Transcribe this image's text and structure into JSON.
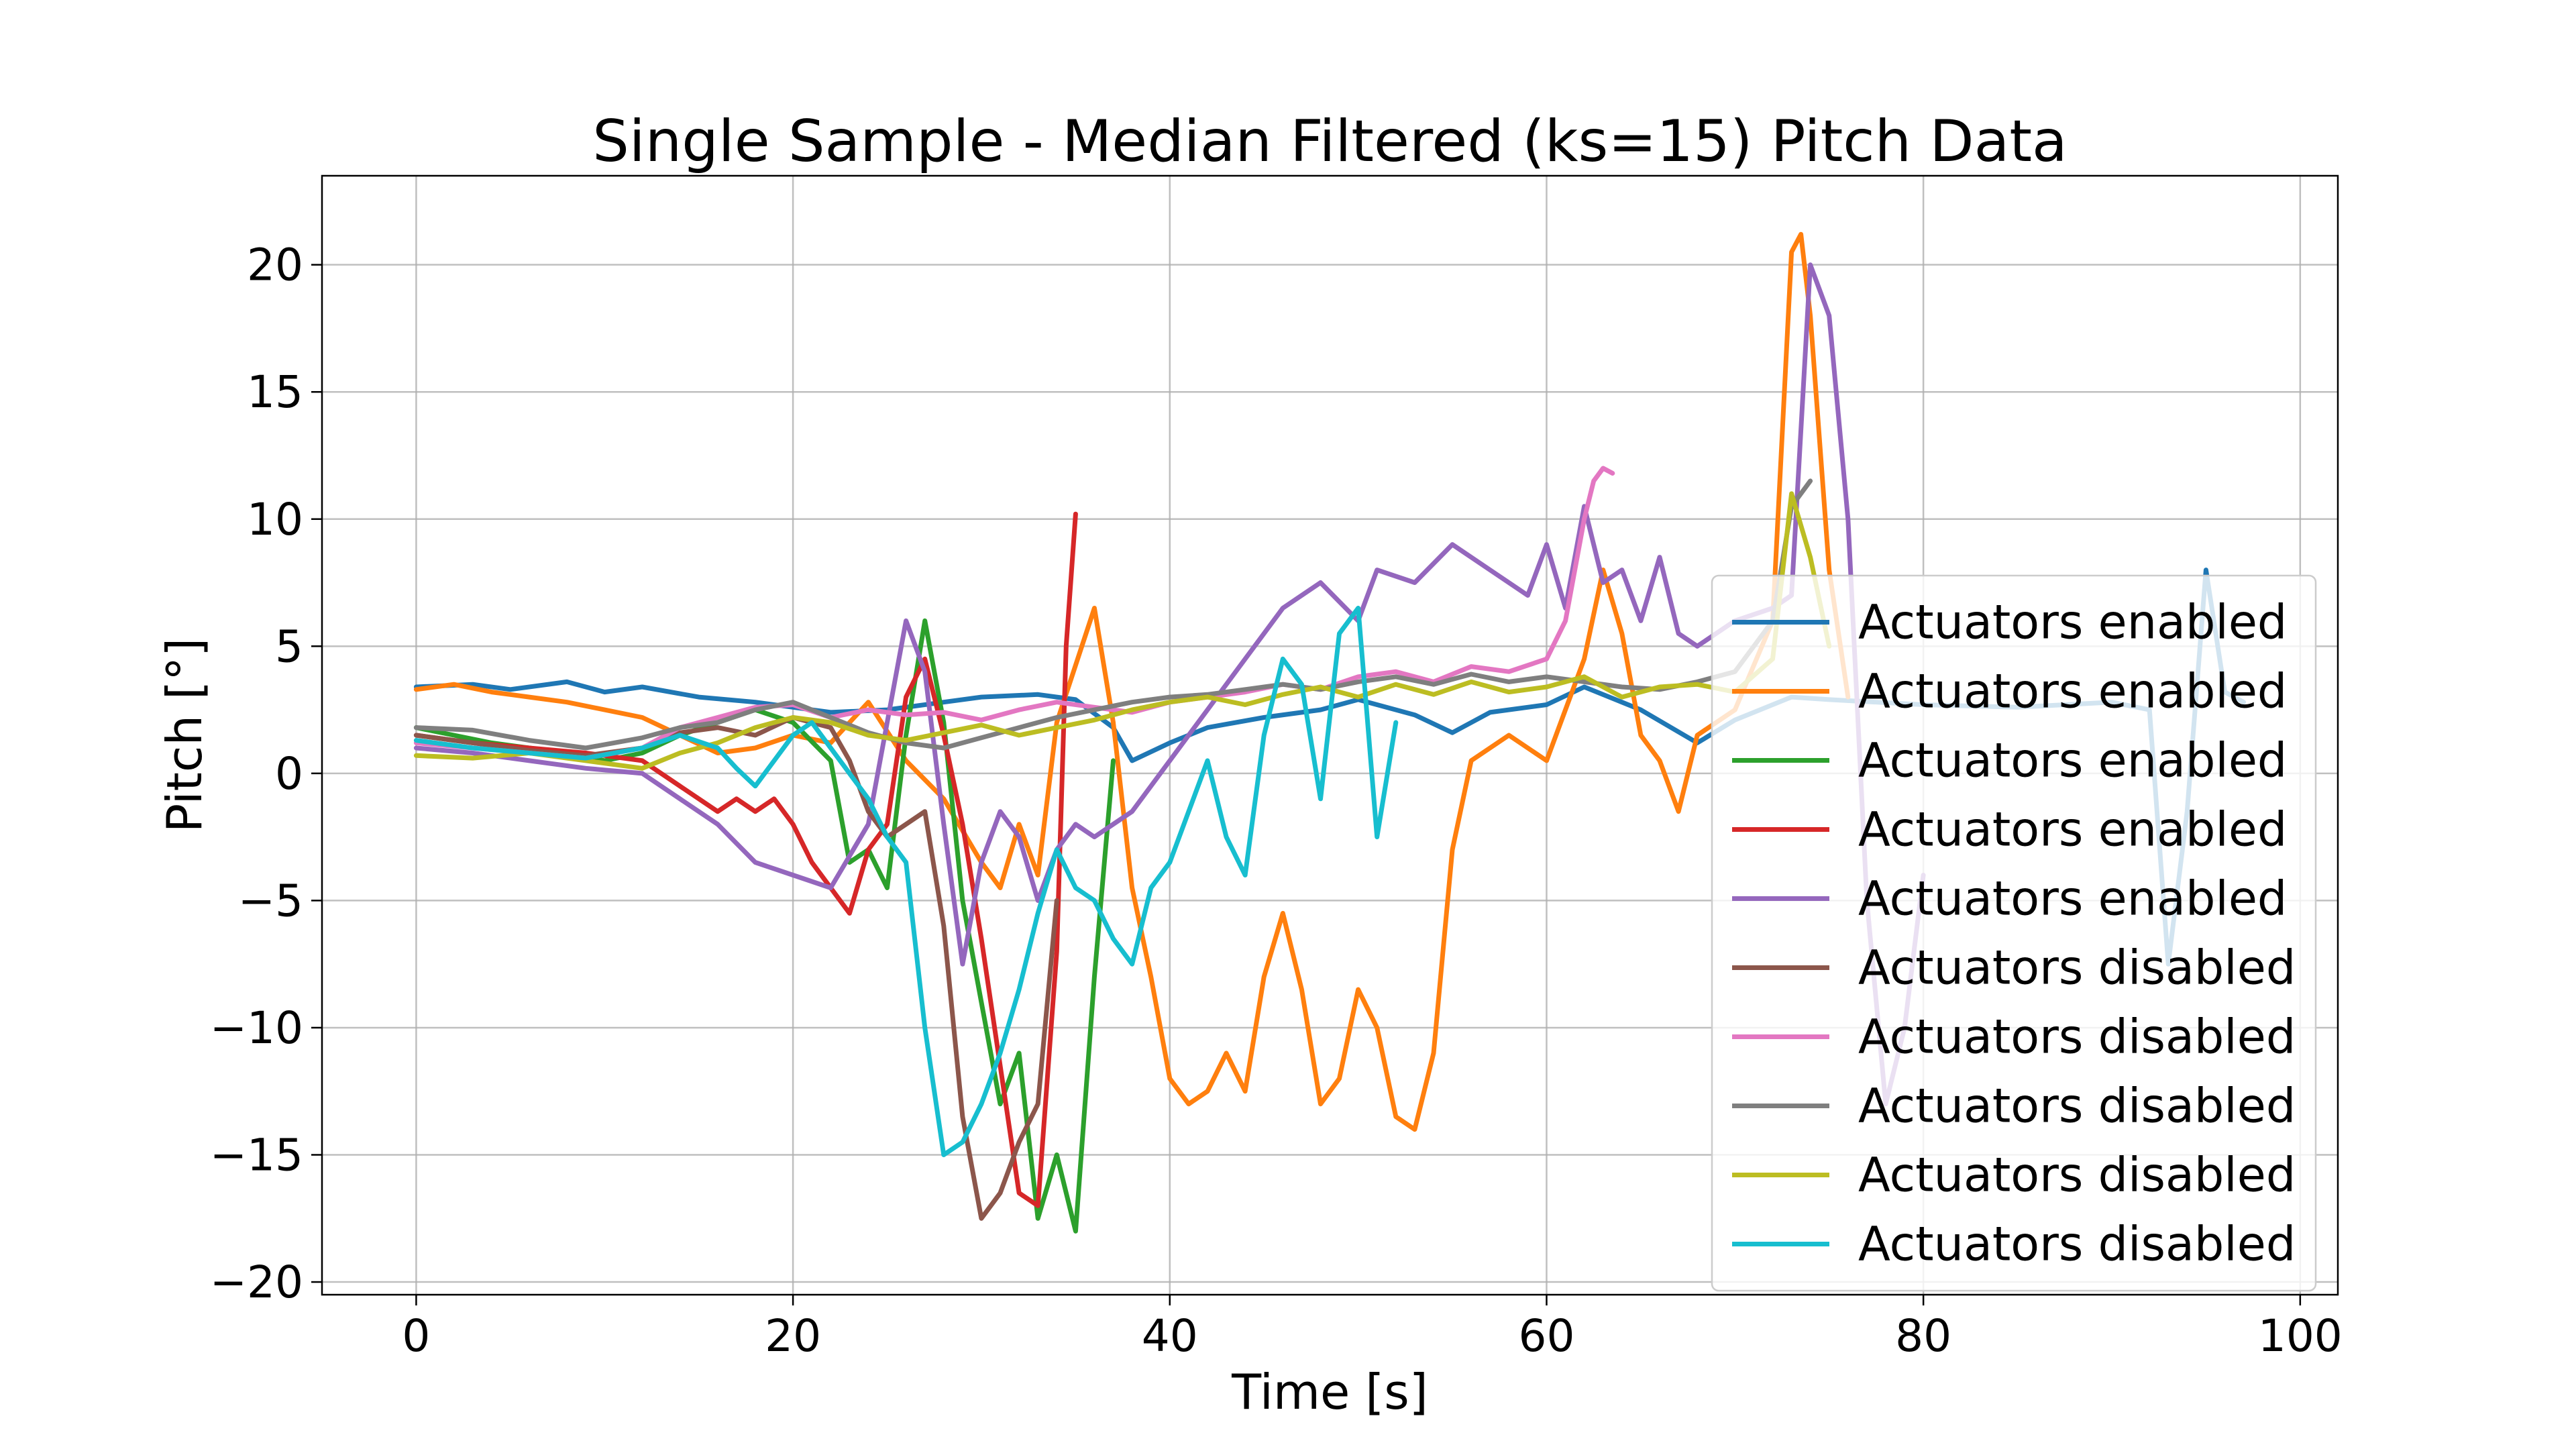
{
  "chart_data": {
    "type": "line",
    "title": "Single Sample - Median Filtered (ks=15) Pitch Data",
    "xlabel": "Time [s]",
    "ylabel": "Pitch [°]",
    "xlim": [
      -5,
      102
    ],
    "ylim": [
      -20.5,
      23.5
    ],
    "xticks": [
      0,
      20,
      40,
      60,
      80,
      100
    ],
    "yticks": [
      -20,
      -15,
      -10,
      -5,
      0,
      5,
      10,
      15,
      20
    ],
    "grid": true,
    "legend_position": "right",
    "series": [
      {
        "name": "Actuators enabled",
        "color": "#1f77b4",
        "x": [
          0,
          3,
          5,
          8,
          10,
          12,
          15,
          18,
          20,
          22,
          25,
          28,
          30,
          33,
          35,
          37,
          38,
          40,
          42,
          45,
          48,
          50,
          53,
          55,
          57,
          60,
          62,
          65,
          68,
          70,
          73,
          75,
          80,
          85,
          90,
          92,
          93,
          94,
          95,
          96,
          97
        ],
        "y": [
          3.4,
          3.5,
          3.3,
          3.6,
          3.2,
          3.4,
          3.0,
          2.8,
          2.6,
          2.4,
          2.5,
          2.8,
          3.0,
          3.1,
          2.9,
          1.8,
          0.5,
          1.2,
          1.8,
          2.2,
          2.5,
          2.9,
          2.3,
          1.6,
          2.4,
          2.7,
          3.4,
          2.5,
          1.2,
          2.1,
          3.0,
          2.9,
          2.7,
          2.6,
          2.8,
          2.5,
          -7.5,
          -1.5,
          8.0,
          3.2,
          2.8
        ]
      },
      {
        "name": "Actuators enabled",
        "color": "#ff7f0e",
        "x": [
          0,
          2,
          4,
          6,
          8,
          10,
          12,
          14,
          16,
          18,
          20,
          22,
          24,
          26,
          28,
          30,
          31,
          32,
          33,
          34,
          36,
          37,
          38,
          39,
          40,
          41,
          42,
          43,
          44,
          45,
          46,
          47,
          48,
          49,
          50,
          51,
          52,
          53,
          54,
          55,
          56,
          58,
          60,
          62,
          63,
          64,
          65,
          66,
          67,
          68,
          70,
          72,
          73,
          73.5,
          74,
          75,
          76
        ],
        "y": [
          3.3,
          3.5,
          3.2,
          3.0,
          2.8,
          2.5,
          2.2,
          1.5,
          0.8,
          1.0,
          1.5,
          1.2,
          2.8,
          0.5,
          -1.0,
          -3.5,
          -4.5,
          -2.0,
          -4.0,
          2.0,
          6.5,
          2.0,
          -4.5,
          -8.0,
          -12.0,
          -13.0,
          -12.5,
          -11.0,
          -12.5,
          -8.0,
          -5.5,
          -8.5,
          -13.0,
          -12.0,
          -8.5,
          -10.0,
          -13.5,
          -14.0,
          -11.0,
          -3.0,
          0.5,
          1.5,
          0.5,
          4.5,
          8.0,
          5.5,
          1.5,
          0.5,
          -1.5,
          1.5,
          2.5,
          6.0,
          20.5,
          21.2,
          18.0,
          8.0,
          3.0
        ]
      },
      {
        "name": "Actuators enabled",
        "color": "#2ca02c",
        "x": [
          0,
          2,
          4,
          6,
          8,
          10,
          12,
          14,
          16,
          18,
          20,
          22,
          23,
          24,
          25,
          26,
          27,
          28,
          29,
          30,
          31,
          32,
          33,
          34,
          35,
          36,
          37
        ],
        "y": [
          1.8,
          1.5,
          1.2,
          1.0,
          0.8,
          0.5,
          0.8,
          1.5,
          2.0,
          2.5,
          2.0,
          0.5,
          -3.5,
          -3.0,
          -4.5,
          1.5,
          6.0,
          2.0,
          -5.0,
          -9.0,
          -13.0,
          -11.0,
          -17.5,
          -15.0,
          -18.0,
          -8.0,
          0.5
        ]
      },
      {
        "name": "Actuators enabled",
        "color": "#d62728",
        "x": [
          0,
          3,
          6,
          9,
          12,
          14,
          16,
          17,
          18,
          19,
          20,
          21,
          22,
          23,
          24,
          25,
          26,
          27,
          28,
          29,
          30,
          31,
          32,
          33,
          34,
          34.5,
          35
        ],
        "y": [
          1.5,
          1.2,
          1.0,
          0.8,
          0.5,
          -0.5,
          -1.5,
          -1.0,
          -1.5,
          -1.0,
          -2.0,
          -3.5,
          -4.5,
          -5.5,
          -3.0,
          -2.0,
          3.0,
          4.5,
          1.5,
          -2.0,
          -6.5,
          -11.5,
          -16.5,
          -17.0,
          -7.0,
          5.0,
          10.2
        ]
      },
      {
        "name": "Actuators enabled",
        "color": "#9467bd",
        "x": [
          0,
          3,
          6,
          9,
          12,
          14,
          16,
          18,
          20,
          22,
          24,
          25,
          26,
          27,
          28,
          29,
          30,
          31,
          32,
          33,
          34,
          35,
          36,
          38,
          40,
          42,
          44,
          46,
          48,
          50,
          51,
          53,
          55,
          57,
          59,
          60,
          61,
          62,
          63,
          64,
          65,
          66,
          67,
          68,
          70,
          72,
          73,
          74,
          75,
          76,
          77,
          78,
          79,
          80
        ],
        "y": [
          1.0,
          0.8,
          0.5,
          0.2,
          0.0,
          -1.0,
          -2.0,
          -3.5,
          -4.0,
          -4.5,
          -2.0,
          2.0,
          6.0,
          4.0,
          -2.0,
          -7.5,
          -3.5,
          -1.5,
          -2.5,
          -5.0,
          -3.0,
          -2.0,
          -2.5,
          -1.5,
          0.5,
          2.5,
          4.5,
          6.5,
          7.5,
          6.0,
          8.0,
          7.5,
          9.0,
          8.0,
          7.0,
          9.0,
          6.5,
          10.5,
          7.5,
          8.0,
          6.0,
          8.5,
          5.5,
          5.0,
          6.0,
          6.5,
          7.0,
          20.0,
          18.0,
          10.0,
          -5.0,
          -13.0,
          -10.0,
          -4.0
        ]
      },
      {
        "name": "Actuators disabled",
        "color": "#8c564b",
        "x": [
          0,
          3,
          6,
          9,
          12,
          14,
          16,
          18,
          20,
          22,
          23,
          24,
          25,
          26,
          27,
          28,
          29,
          30,
          31,
          32,
          33,
          34
        ],
        "y": [
          1.5,
          1.2,
          0.9,
          0.7,
          1.0,
          1.6,
          1.8,
          1.5,
          2.2,
          1.8,
          0.5,
          -1.5,
          -2.5,
          -2.0,
          -1.5,
          -6.0,
          -13.5,
          -17.5,
          -16.5,
          -14.5,
          -13.0,
          -5.0
        ]
      },
      {
        "name": "Actuators disabled",
        "color": "#e377c2",
        "x": [
          0,
          3,
          6,
          9,
          12,
          14,
          16,
          18,
          20,
          22,
          24,
          26,
          28,
          30,
          32,
          34,
          36,
          38,
          40,
          42,
          44,
          46,
          48,
          50,
          52,
          54,
          56,
          58,
          60,
          61,
          62,
          62.5,
          63,
          63.5
        ],
        "y": [
          1.2,
          1.0,
          0.8,
          0.6,
          1.0,
          1.8,
          2.2,
          2.6,
          2.7,
          2.2,
          2.5,
          2.3,
          2.4,
          2.1,
          2.5,
          2.8,
          2.6,
          2.4,
          2.8,
          3.0,
          3.2,
          3.5,
          3.3,
          3.8,
          4.0,
          3.6,
          4.2,
          4.0,
          4.5,
          6.0,
          10.0,
          11.5,
          12.0,
          11.8
        ]
      },
      {
        "name": "Actuators disabled",
        "color": "#7f7f7f",
        "x": [
          0,
          3,
          6,
          9,
          12,
          14,
          16,
          18,
          20,
          22,
          24,
          26,
          28,
          30,
          32,
          34,
          36,
          38,
          40,
          42,
          44,
          46,
          48,
          50,
          52,
          54,
          56,
          58,
          60,
          62,
          64,
          66,
          68,
          70,
          72,
          73,
          74
        ],
        "y": [
          1.8,
          1.7,
          1.3,
          1.0,
          1.4,
          1.8,
          2.0,
          2.5,
          2.8,
          2.2,
          1.6,
          1.2,
          1.0,
          1.4,
          1.8,
          2.2,
          2.5,
          2.8,
          3.0,
          3.1,
          3.3,
          3.5,
          3.3,
          3.6,
          3.8,
          3.5,
          3.9,
          3.6,
          3.8,
          3.6,
          3.4,
          3.3,
          3.6,
          4.0,
          6.0,
          10.5,
          11.5
        ]
      },
      {
        "name": "Actuators disabled",
        "color": "#bcbd22",
        "x": [
          0,
          3,
          6,
          9,
          12,
          14,
          16,
          18,
          20,
          22,
          24,
          26,
          28,
          30,
          32,
          34,
          36,
          38,
          40,
          42,
          44,
          46,
          48,
          50,
          52,
          54,
          56,
          58,
          60,
          62,
          64,
          66,
          68,
          70,
          72,
          73,
          74,
          75
        ],
        "y": [
          0.7,
          0.6,
          0.8,
          0.5,
          0.2,
          0.8,
          1.2,
          1.8,
          2.2,
          2.0,
          1.5,
          1.3,
          1.6,
          1.9,
          1.5,
          1.8,
          2.1,
          2.5,
          2.8,
          3.0,
          2.7,
          3.1,
          3.4,
          3.0,
          3.5,
          3.1,
          3.6,
          3.2,
          3.4,
          3.8,
          3.0,
          3.4,
          3.5,
          3.2,
          4.5,
          11.0,
          8.5,
          5.0
        ]
      },
      {
        "name": "Actuators disabled",
        "color": "#17becf",
        "x": [
          0,
          3,
          6,
          9,
          12,
          14,
          16,
          17,
          18,
          19,
          20,
          21,
          22,
          24,
          25,
          26,
          27,
          28,
          29,
          30,
          31,
          32,
          33,
          34,
          35,
          36,
          37,
          38,
          39,
          40,
          41,
          42,
          43,
          44,
          45,
          46,
          47,
          48,
          49,
          50,
          50.5,
          51,
          52
        ],
        "y": [
          1.3,
          1.0,
          0.8,
          0.6,
          1.0,
          1.5,
          1.0,
          0.2,
          -0.5,
          0.5,
          1.5,
          2.0,
          1.0,
          -1.0,
          -2.5,
          -3.5,
          -10.0,
          -15.0,
          -14.5,
          -13.0,
          -11.0,
          -8.5,
          -5.5,
          -3.0,
          -4.5,
          -5.0,
          -6.5,
          -7.5,
          -4.5,
          -3.5,
          -1.5,
          0.5,
          -2.5,
          -4.0,
          1.5,
          4.5,
          3.5,
          -1.0,
          5.5,
          6.5,
          2.0,
          -2.5,
          2.0
        ]
      }
    ]
  }
}
